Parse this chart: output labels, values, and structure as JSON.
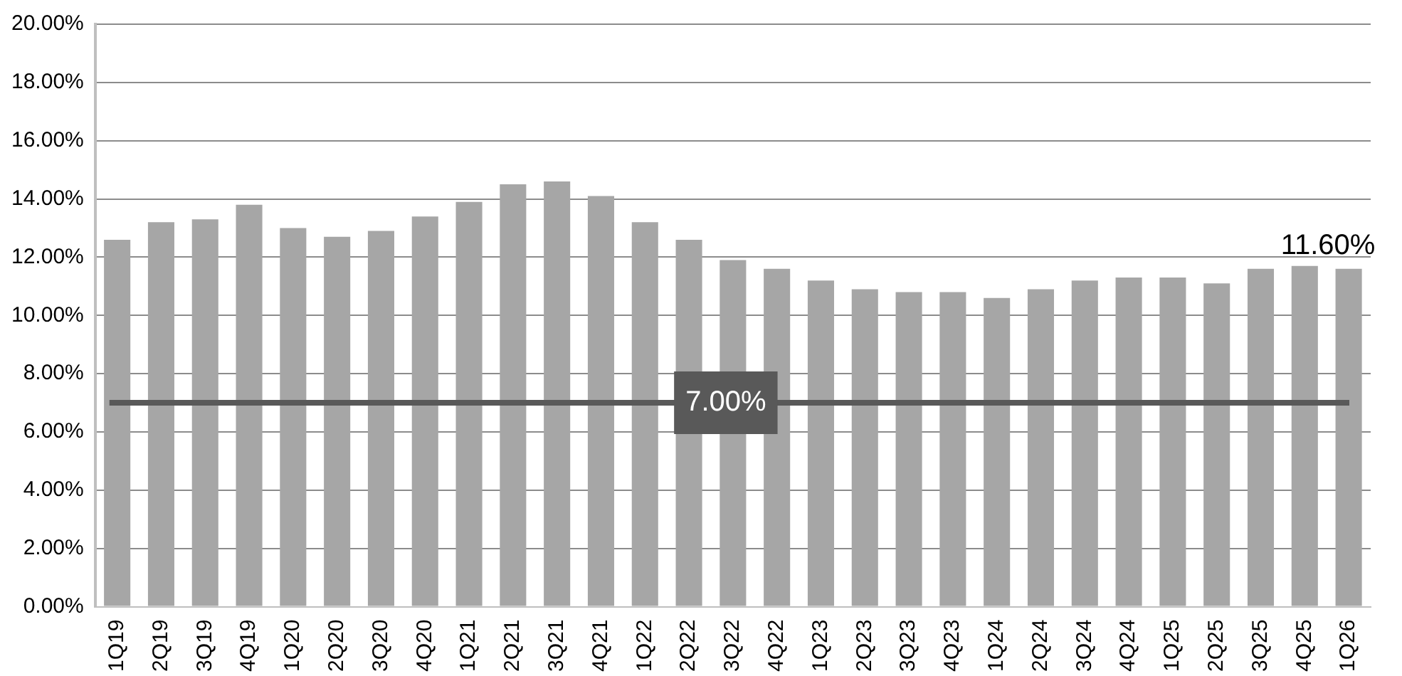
{
  "chart_data": {
    "type": "bar",
    "categories": [
      "1Q19",
      "2Q19",
      "3Q19",
      "4Q19",
      "1Q20",
      "2Q20",
      "3Q20",
      "4Q20",
      "1Q21",
      "2Q21",
      "3Q21",
      "4Q21",
      "1Q22",
      "2Q22",
      "3Q22",
      "4Q22",
      "1Q23",
      "2Q23",
      "3Q23",
      "4Q23",
      "1Q24",
      "2Q24",
      "3Q24",
      "4Q24",
      "1Q25",
      "2Q25",
      "3Q25",
      "4Q25",
      "1Q26"
    ],
    "values": [
      12.6,
      13.2,
      13.3,
      13.8,
      13.0,
      12.7,
      12.9,
      13.4,
      13.9,
      14.5,
      14.6,
      14.1,
      13.2,
      12.6,
      11.9,
      11.6,
      11.2,
      10.9,
      10.8,
      10.8,
      10.6,
      10.9,
      11.2,
      11.3,
      11.3,
      11.1,
      11.6,
      11.7,
      11.6
    ],
    "value_labels": [
      null,
      null,
      null,
      null,
      null,
      null,
      null,
      null,
      null,
      null,
      null,
      null,
      null,
      null,
      null,
      null,
      null,
      null,
      null,
      null,
      null,
      null,
      null,
      null,
      null,
      null,
      null,
      null,
      "11.60%"
    ],
    "color": "#a6a6a6",
    "ylim": [
      0,
      20
    ],
    "yticks": [
      {
        "value": 0,
        "label": "0.00%"
      },
      {
        "value": 2,
        "label": "2.00%"
      },
      {
        "value": 4,
        "label": "4.00%"
      },
      {
        "value": 6,
        "label": "6.00%"
      },
      {
        "value": 8,
        "label": "8.00%"
      },
      {
        "value": 10,
        "label": "10.00%"
      },
      {
        "value": 12,
        "label": "12.00%"
      },
      {
        "value": 14,
        "label": "14.00%"
      },
      {
        "value": 16,
        "label": "16.00%"
      },
      {
        "value": 18,
        "label": "18.00%"
      },
      {
        "value": 20,
        "label": "20.00%"
      }
    ],
    "ref_lines": [
      {
        "axis": "y",
        "value": 7,
        "label": "7.00%",
        "color": "#595959"
      }
    ],
    "grid": "y",
    "legend": false
  }
}
